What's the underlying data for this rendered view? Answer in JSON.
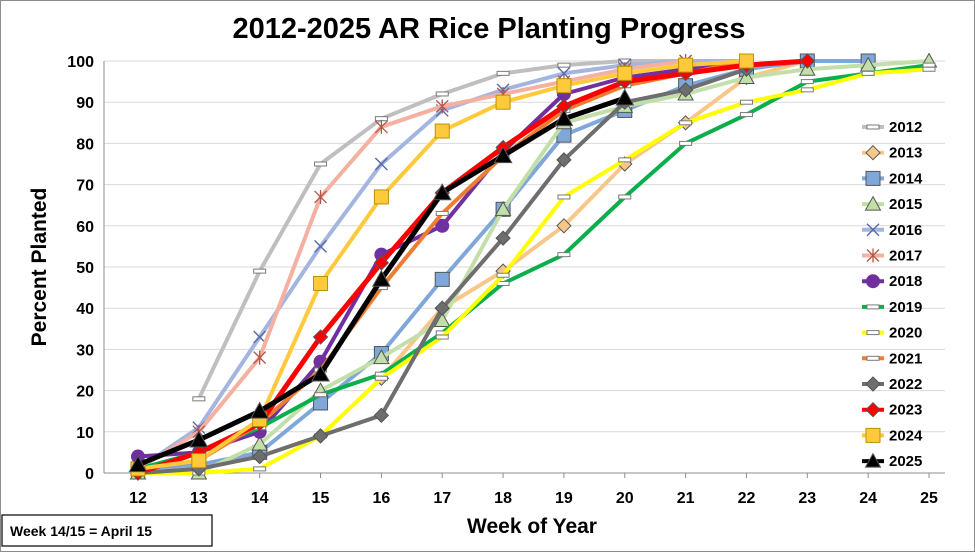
{
  "chart_data": {
    "type": "line",
    "title": "2012-2025 AR Rice Planting Progress",
    "xlabel": "Week of Year",
    "ylabel": "Percent Planted",
    "xlim": [
      12,
      25
    ],
    "ylim": [
      0,
      100
    ],
    "x_ticks": [
      12,
      13,
      14,
      15,
      16,
      17,
      18,
      19,
      20,
      21,
      22,
      23,
      24,
      25
    ],
    "y_ticks": [
      0,
      10,
      20,
      30,
      40,
      50,
      60,
      70,
      80,
      90,
      100
    ],
    "grid": "horizontal",
    "legend_position": "right",
    "note": "Week 14/15 = April 15",
    "series": [
      {
        "name": "2012",
        "color": "#BFBFBF",
        "marker": "dash",
        "x": [
          13,
          14,
          15,
          16,
          17,
          18,
          19,
          20,
          21
        ],
        "y": [
          18,
          49,
          75,
          86,
          92,
          97,
          99,
          100,
          100
        ]
      },
      {
        "name": "2013",
        "color": "#F9C68A",
        "marker": "diamond",
        "x": [
          12,
          13,
          14,
          15,
          16,
          17,
          18,
          19,
          20,
          21,
          22,
          23
        ],
        "y": [
          0,
          1,
          4,
          9,
          23,
          40,
          49,
          60,
          75,
          85,
          96,
          100
        ]
      },
      {
        "name": "2014",
        "color": "#7FA7D9",
        "marker": "square",
        "x": [
          12,
          13,
          14,
          15,
          16,
          17,
          18,
          19,
          20,
          21,
          22,
          23,
          24
        ],
        "y": [
          1,
          2,
          5,
          17,
          29,
          47,
          64,
          82,
          88,
          94,
          98,
          100,
          100
        ]
      },
      {
        "name": "2015",
        "color": "#C3DFA9",
        "marker": "triangle",
        "x": [
          12,
          13,
          14,
          15,
          16,
          17,
          18,
          19,
          20,
          21,
          22,
          23,
          24,
          25
        ],
        "y": [
          0,
          0,
          7,
          20,
          28,
          37,
          64,
          85,
          89,
          92,
          96,
          98,
          99,
          100
        ]
      },
      {
        "name": "2016",
        "color": "#A4B5E0",
        "marker": "x",
        "x": [
          12,
          13,
          14,
          15,
          16,
          17,
          18,
          19,
          20,
          21,
          22
        ],
        "y": [
          1,
          11,
          33,
          55,
          75,
          88,
          93,
          97,
          99,
          100,
          100
        ]
      },
      {
        "name": "2017",
        "color": "#F4B0A0",
        "marker": "star",
        "x": [
          12,
          13,
          14,
          15,
          16,
          17,
          18,
          19,
          20,
          21
        ],
        "y": [
          1,
          10,
          28,
          67,
          84,
          89,
          92,
          95,
          98,
          100
        ]
      },
      {
        "name": "2018",
        "color": "#7030A0",
        "marker": "circle",
        "x": [
          12,
          13,
          14,
          15,
          16,
          17,
          18,
          19,
          20,
          21,
          22
        ],
        "y": [
          4,
          5,
          10,
          27,
          53,
          60,
          78,
          92,
          96,
          98,
          100
        ]
      },
      {
        "name": "2019",
        "color": "#0AAE4B",
        "marker": "dash",
        "x": [
          12,
          13,
          14,
          15,
          16,
          17,
          18,
          19,
          20,
          21,
          22,
          23,
          24,
          25
        ],
        "y": [
          1,
          5,
          11,
          19,
          24,
          34,
          46,
          53,
          67,
          80,
          87,
          95,
          97,
          99
        ]
      },
      {
        "name": "2020",
        "color": "#FFFF00",
        "marker": "dash",
        "x": [
          12,
          13,
          14,
          15,
          16,
          17,
          18,
          19,
          20,
          21,
          22,
          23,
          24,
          25
        ],
        "y": [
          0,
          0,
          1,
          9,
          23,
          33,
          48,
          67,
          76,
          85,
          90,
          93,
          97,
          98
        ]
      },
      {
        "name": "2021",
        "color": "#ED7D31",
        "marker": "dash",
        "x": [
          12,
          13,
          14,
          15,
          16,
          17,
          18,
          19,
          20,
          21,
          22
        ],
        "y": [
          1,
          3,
          12,
          25,
          45,
          63,
          77,
          88,
          94,
          97,
          100
        ]
      },
      {
        "name": "2022",
        "color": "#6E6E6E",
        "marker": "diamond",
        "x": [
          12,
          13,
          14,
          15,
          16,
          17,
          18,
          19,
          20,
          21,
          22
        ],
        "y": [
          0,
          1,
          4,
          9,
          14,
          40,
          57,
          76,
          90,
          93,
          98
        ]
      },
      {
        "name": "2023",
        "color": "#FF0000",
        "marker": "diamond",
        "x": [
          12,
          13,
          14,
          15,
          16,
          17,
          18,
          19,
          20,
          21,
          22,
          23
        ],
        "y": [
          0,
          5,
          12,
          33,
          51,
          68,
          79,
          89,
          95,
          97,
          99,
          100
        ]
      },
      {
        "name": "2024",
        "color": "#FFC93C",
        "marker": "square",
        "x": [
          12,
          13,
          14,
          15,
          16,
          17,
          18,
          19,
          20,
          21,
          22
        ],
        "y": [
          1,
          3,
          13,
          46,
          67,
          83,
          90,
          94,
          97,
          99,
          100
        ]
      },
      {
        "name": "2025",
        "color": "#000000",
        "marker": "triangle",
        "x": [
          12,
          13,
          14,
          15,
          16,
          17,
          18,
          19,
          20
        ],
        "y": [
          2,
          8,
          15,
          24,
          47,
          68,
          77,
          86,
          91
        ]
      }
    ]
  }
}
